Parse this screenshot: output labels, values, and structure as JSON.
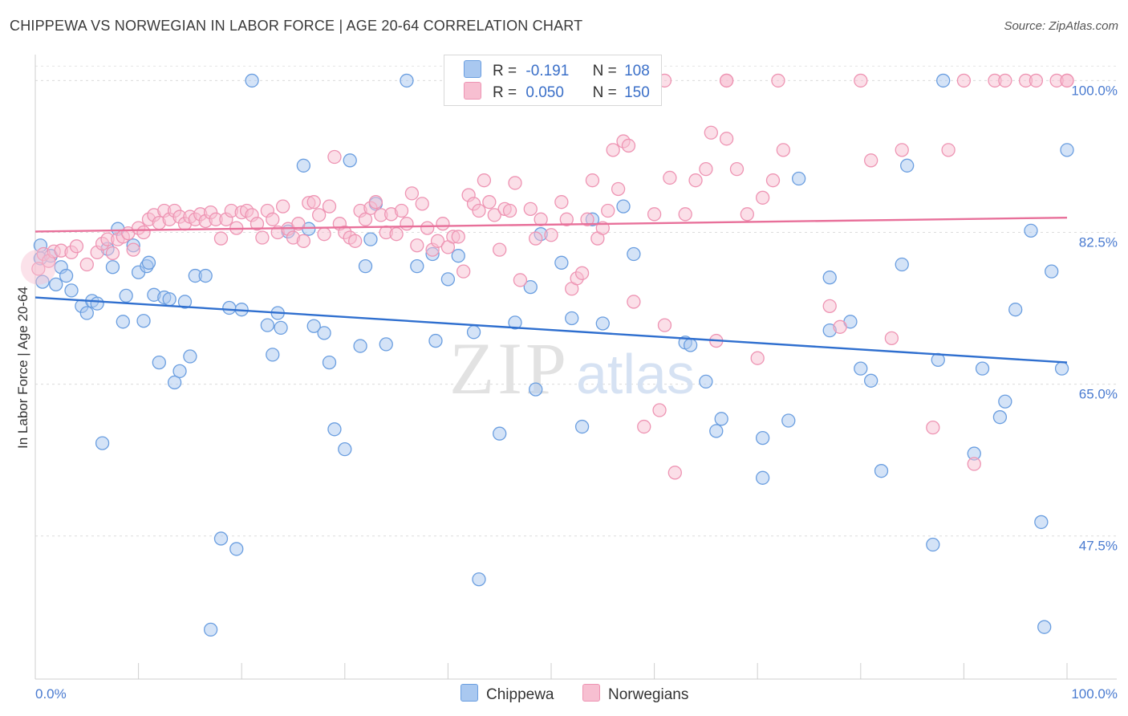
{
  "title": "CHIPPEWA VS NORWEGIAN IN LABOR FORCE | AGE 20-64 CORRELATION CHART",
  "source": "Source: ZipAtlas.com",
  "colors": {
    "chippewa_fill": "#a9c8f0",
    "chippewa_stroke": "#6a9ee0",
    "chippewa_line": "#2f6fcf",
    "norwegians_fill": "#f7bfd1",
    "norwegians_stroke": "#ee94b3",
    "norwegians_line": "#e8709a",
    "tick_text": "#4a7bd0"
  },
  "legend": {
    "rows": [
      {
        "r_label": "R =",
        "r_value": "-0.191",
        "n_label": "N =",
        "n_value": "108"
      },
      {
        "r_label": "R =",
        "r_value": "0.050",
        "n_label": "N =",
        "n_value": "150"
      }
    ]
  },
  "bottom_legend": [
    "Chippewa",
    "Norwegians"
  ],
  "chart_data": {
    "type": "scatter",
    "title": "CHIPPEWA VS NORWEGIAN IN LABOR FORCE | AGE 20-64 CORRELATION CHART",
    "xlabel": "",
    "ylabel": "In Labor Force | Age 20-64",
    "xlim": [
      0,
      100
    ],
    "ylim": [
      31,
      103
    ],
    "x_tick_labels": [
      "0.0%",
      "100.0%"
    ],
    "y_ticks": [
      47.5,
      65.0,
      82.5,
      100.0
    ],
    "y_tick_labels": [
      "47.5%",
      "65.0%",
      "82.5%",
      "100.0%"
    ],
    "grid": "horizontal dashed",
    "legend_position": "top-center",
    "watermark": "ZIPatlas",
    "series": [
      {
        "name": "Chippewa",
        "trend": {
          "x": [
            0,
            100
          ],
          "y": [
            75.0,
            67.5
          ]
        },
        "points": [
          [
            0.5,
            81.0
          ],
          [
            0.5,
            79.5
          ],
          [
            0.7,
            76.8
          ],
          [
            1.5,
            79.8
          ],
          [
            2.0,
            76.5
          ],
          [
            2.5,
            78.5
          ],
          [
            3.0,
            77.5
          ],
          [
            3.5,
            75.8
          ],
          [
            4.5,
            74.0
          ],
          [
            5.0,
            73.2
          ],
          [
            5.5,
            74.6
          ],
          [
            6.0,
            74.3
          ],
          [
            6.5,
            58.2
          ],
          [
            7.0,
            80.6
          ],
          [
            7.5,
            78.5
          ],
          [
            8.0,
            82.9
          ],
          [
            8.5,
            72.2
          ],
          [
            8.8,
            75.2
          ],
          [
            9.5,
            81.0
          ],
          [
            10.0,
            77.9
          ],
          [
            10.5,
            72.3
          ],
          [
            10.8,
            78.6
          ],
          [
            11.0,
            79.0
          ],
          [
            11.5,
            75.3
          ],
          [
            12.0,
            67.5
          ],
          [
            12.5,
            75.0
          ],
          [
            13.0,
            74.8
          ],
          [
            13.5,
            65.2
          ],
          [
            14.0,
            66.5
          ],
          [
            14.5,
            74.5
          ],
          [
            15.0,
            68.2
          ],
          [
            15.5,
            77.5
          ],
          [
            16.5,
            77.5
          ],
          [
            17.0,
            36.7
          ],
          [
            18.0,
            47.2
          ],
          [
            18.8,
            73.8
          ],
          [
            19.5,
            46.0
          ],
          [
            20.0,
            73.6
          ],
          [
            21.0,
            100.0
          ],
          [
            22.5,
            71.8
          ],
          [
            23.0,
            68.4
          ],
          [
            23.5,
            73.2
          ],
          [
            23.8,
            71.5
          ],
          [
            24.5,
            82.6
          ],
          [
            26.0,
            90.2
          ],
          [
            26.5,
            82.9
          ],
          [
            27.0,
            71.7
          ],
          [
            28.0,
            70.9
          ],
          [
            28.5,
            67.5
          ],
          [
            29.0,
            59.8
          ],
          [
            30.0,
            57.5
          ],
          [
            30.5,
            90.8
          ],
          [
            31.5,
            69.4
          ],
          [
            32.0,
            78.6
          ],
          [
            32.5,
            81.7
          ],
          [
            33.0,
            85.8
          ],
          [
            34.0,
            69.6
          ],
          [
            36.0,
            100.0
          ],
          [
            37.0,
            78.6
          ],
          [
            38.5,
            80.0
          ],
          [
            38.8,
            70.0
          ],
          [
            40.0,
            77.1
          ],
          [
            41.0,
            79.8
          ],
          [
            42.5,
            71.0
          ],
          [
            43.0,
            42.5
          ],
          [
            45.0,
            59.3
          ],
          [
            46.5,
            72.1
          ],
          [
            48.0,
            76.2
          ],
          [
            48.5,
            64.4
          ],
          [
            49.0,
            82.3
          ],
          [
            51.0,
            79.0
          ],
          [
            52.0,
            72.6
          ],
          [
            53.0,
            60.1
          ],
          [
            54.0,
            84.0
          ],
          [
            55.0,
            72.0
          ],
          [
            57.0,
            85.5
          ],
          [
            58.0,
            80.0
          ],
          [
            63.0,
            69.8
          ],
          [
            63.5,
            69.5
          ],
          [
            65.0,
            65.3
          ],
          [
            66.0,
            59.6
          ],
          [
            66.5,
            61.0
          ],
          [
            70.5,
            58.8
          ],
          [
            70.5,
            54.2
          ],
          [
            73.0,
            60.8
          ],
          [
            74.0,
            88.7
          ],
          [
            77.0,
            77.3
          ],
          [
            77.0,
            71.2
          ],
          [
            79.0,
            72.2
          ],
          [
            80.0,
            66.8
          ],
          [
            81.0,
            65.4
          ],
          [
            82.0,
            55.0
          ],
          [
            84.0,
            78.8
          ],
          [
            84.5,
            90.2
          ],
          [
            87.0,
            46.5
          ],
          [
            87.5,
            67.8
          ],
          [
            88.0,
            100.0
          ],
          [
            91.0,
            57.0
          ],
          [
            91.8,
            66.8
          ],
          [
            93.5,
            61.2
          ],
          [
            94.0,
            63.0
          ],
          [
            95.0,
            73.6
          ],
          [
            96.5,
            82.7
          ],
          [
            97.5,
            49.1
          ],
          [
            97.8,
            37.0
          ],
          [
            98.5,
            78.0
          ],
          [
            99.5,
            66.8
          ],
          [
            100.0,
            92.0
          ]
        ]
      },
      {
        "name": "Norwegians",
        "trend": {
          "x": [
            0,
            100
          ],
          "y": [
            82.6,
            84.2
          ]
        },
        "points": [
          [
            0.3,
            78.3
          ],
          [
            0.8,
            80.0
          ],
          [
            1.3,
            79.2
          ],
          [
            1.8,
            80.3
          ],
          [
            2.5,
            80.4
          ],
          [
            3.5,
            80.2
          ],
          [
            4.0,
            80.9
          ],
          [
            5.0,
            78.8
          ],
          [
            6.0,
            80.2
          ],
          [
            6.5,
            81.2
          ],
          [
            7.0,
            81.7
          ],
          [
            7.5,
            80.1
          ],
          [
            8.0,
            81.7
          ],
          [
            8.5,
            82.0
          ],
          [
            9.0,
            82.4
          ],
          [
            9.5,
            80.5
          ],
          [
            10.0,
            83.0
          ],
          [
            10.5,
            82.5
          ],
          [
            11.0,
            84.0
          ],
          [
            11.5,
            84.5
          ],
          [
            12.0,
            83.6
          ],
          [
            12.5,
            85.0
          ],
          [
            13.0,
            84.0
          ],
          [
            13.5,
            85.0
          ],
          [
            14.0,
            84.3
          ],
          [
            14.5,
            83.5
          ],
          [
            15.0,
            84.3
          ],
          [
            15.5,
            84.0
          ],
          [
            16.0,
            84.6
          ],
          [
            16.5,
            83.8
          ],
          [
            17.0,
            84.8
          ],
          [
            17.5,
            84.0
          ],
          [
            18.0,
            81.8
          ],
          [
            18.5,
            84.0
          ],
          [
            19.0,
            85.0
          ],
          [
            19.5,
            83.0
          ],
          [
            20.0,
            84.8
          ],
          [
            20.5,
            85.0
          ],
          [
            21.0,
            84.5
          ],
          [
            21.5,
            83.5
          ],
          [
            22.0,
            81.9
          ],
          [
            22.5,
            85.0
          ],
          [
            23.0,
            84.0
          ],
          [
            23.5,
            82.5
          ],
          [
            24.0,
            85.5
          ],
          [
            24.5,
            82.9
          ],
          [
            25.0,
            81.9
          ],
          [
            25.5,
            83.5
          ],
          [
            26.0,
            81.5
          ],
          [
            26.5,
            85.9
          ],
          [
            27.0,
            86.0
          ],
          [
            27.5,
            84.5
          ],
          [
            28.0,
            82.3
          ],
          [
            28.5,
            85.5
          ],
          [
            29.0,
            91.2
          ],
          [
            29.5,
            83.5
          ],
          [
            30.0,
            82.5
          ],
          [
            30.5,
            81.9
          ],
          [
            31.0,
            81.5
          ],
          [
            31.5,
            85.0
          ],
          [
            32.0,
            84.0
          ],
          [
            32.5,
            85.3
          ],
          [
            33.0,
            86.0
          ],
          [
            33.5,
            84.5
          ],
          [
            34.0,
            82.5
          ],
          [
            34.5,
            84.6
          ],
          [
            35.0,
            82.3
          ],
          [
            35.5,
            85.0
          ],
          [
            36.0,
            83.5
          ],
          [
            36.5,
            87.0
          ],
          [
            37.0,
            81.0
          ],
          [
            37.5,
            85.8
          ],
          [
            38.0,
            83.0
          ],
          [
            38.5,
            80.5
          ],
          [
            39.0,
            81.5
          ],
          [
            39.5,
            83.5
          ],
          [
            40.0,
            80.8
          ],
          [
            40.5,
            82.0
          ],
          [
            41.0,
            82.0
          ],
          [
            41.5,
            78.0
          ],
          [
            42.0,
            86.8
          ],
          [
            42.5,
            85.8
          ],
          [
            43.0,
            85.0
          ],
          [
            43.5,
            88.5
          ],
          [
            44.0,
            86.0
          ],
          [
            44.5,
            84.5
          ],
          [
            45.0,
            80.5
          ],
          [
            45.5,
            85.2
          ],
          [
            46.0,
            85.0
          ],
          [
            46.5,
            88.2
          ],
          [
            47.0,
            77.0
          ],
          [
            48.0,
            85.2
          ],
          [
            48.5,
            81.8
          ],
          [
            49.0,
            84.0
          ],
          [
            50.0,
            82.2
          ],
          [
            51.0,
            86.0
          ],
          [
            51.5,
            84.0
          ],
          [
            52.0,
            76.0
          ],
          [
            52.5,
            77.2
          ],
          [
            53.0,
            77.8
          ],
          [
            53.5,
            84.0
          ],
          [
            54.0,
            88.5
          ],
          [
            54.5,
            81.8
          ],
          [
            55.0,
            83.0
          ],
          [
            55.5,
            85.0
          ],
          [
            56.0,
            92.0
          ],
          [
            56.5,
            87.5
          ],
          [
            57.0,
            93.0
          ],
          [
            57.5,
            92.5
          ],
          [
            58.0,
            74.5
          ],
          [
            59.0,
            60.1
          ],
          [
            60.0,
            84.6
          ],
          [
            60.5,
            62.0
          ],
          [
            61.0,
            71.8
          ],
          [
            61.5,
            88.8
          ],
          [
            62.0,
            54.8
          ],
          [
            63.0,
            84.6
          ],
          [
            64.0,
            88.5
          ],
          [
            65.0,
            89.8
          ],
          [
            65.5,
            94.0
          ],
          [
            66.0,
            70.0
          ],
          [
            67.0,
            93.3
          ],
          [
            68.0,
            89.8
          ],
          [
            69.0,
            84.6
          ],
          [
            70.0,
            68.0
          ],
          [
            70.5,
            86.5
          ],
          [
            71.5,
            88.5
          ],
          [
            72.0,
            100.0
          ],
          [
            72.5,
            92.0
          ],
          [
            77.0,
            74.0
          ],
          [
            78.0,
            71.6
          ],
          [
            80.0,
            100.0
          ],
          [
            81.0,
            90.8
          ],
          [
            83.0,
            70.3
          ],
          [
            84.0,
            92.0
          ],
          [
            87.0,
            60.0
          ],
          [
            88.5,
            92.0
          ],
          [
            91.0,
            55.8
          ],
          [
            93.0,
            100.0
          ],
          [
            96.0,
            100.0
          ],
          [
            100.0,
            100.0
          ],
          [
            46.8,
            100.0
          ],
          [
            61.0,
            100.0
          ],
          [
            67.0,
            100.0
          ],
          [
            90.0,
            100.0
          ],
          [
            94.0,
            100.0
          ],
          [
            97.0,
            100.0
          ],
          [
            99.0,
            100.0
          ],
          [
            100.0,
            100.0
          ],
          [
            67.0,
            100.0
          ]
        ]
      }
    ]
  }
}
